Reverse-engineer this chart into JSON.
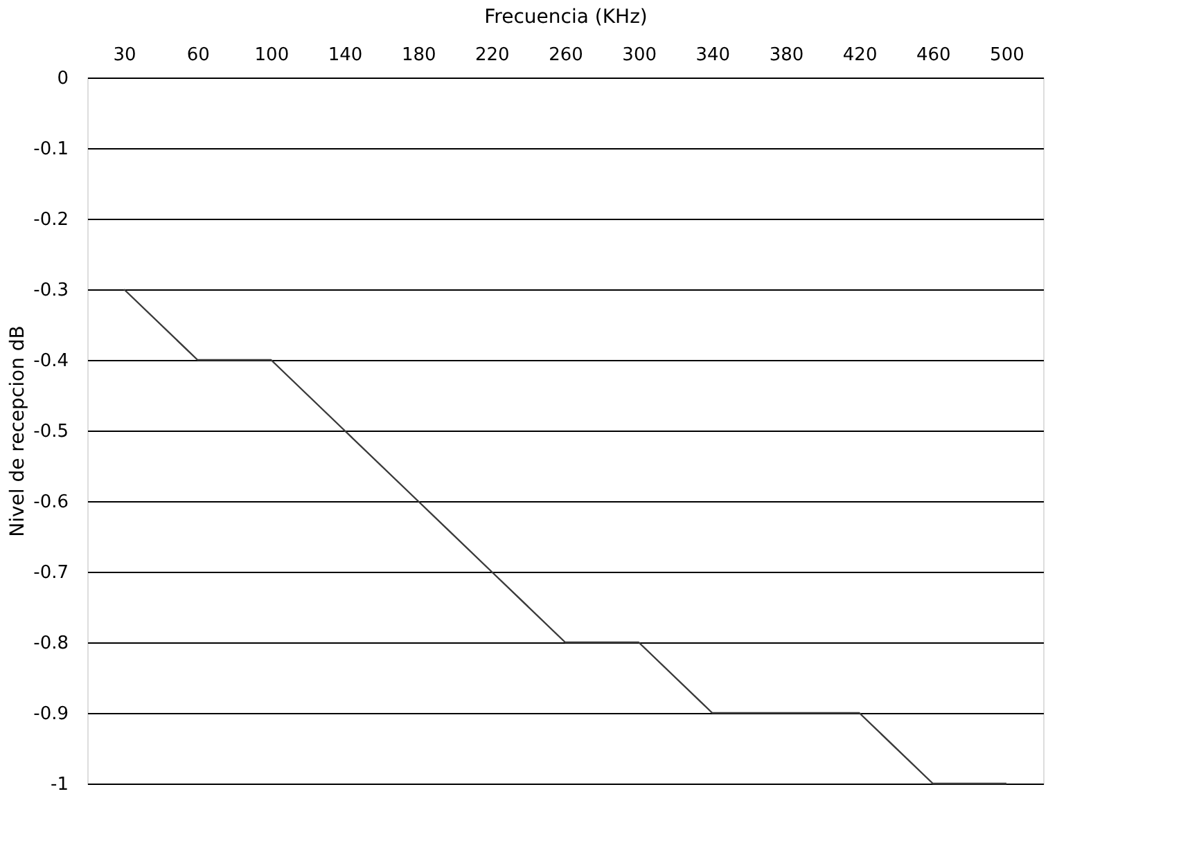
{
  "chart_data": {
    "type": "line",
    "xlabel": "Frecuencia (KHz)",
    "ylabel": "Nivel de recepcion dB",
    "categories": [
      "30",
      "60",
      "100",
      "140",
      "180",
      "220",
      "260",
      "300",
      "340",
      "380",
      "420",
      "460",
      "500"
    ],
    "series": [
      {
        "color": "#3a3a3a",
        "values": [
          -0.3,
          -0.4,
          -0.4,
          -0.5,
          -0.6,
          -0.7,
          -0.8,
          -0.8,
          -0.9,
          -0.9,
          -0.9,
          -1,
          -1
        ]
      }
    ],
    "ylim": [
      -1,
      0
    ],
    "yticks": [
      0,
      -0.1,
      -0.2,
      -0.3,
      -0.4,
      -0.5,
      -0.6,
      -0.7,
      -0.8,
      -0.9,
      -1
    ],
    "grid": "y",
    "legend": false,
    "marker": "none",
    "line_style": "solid"
  }
}
